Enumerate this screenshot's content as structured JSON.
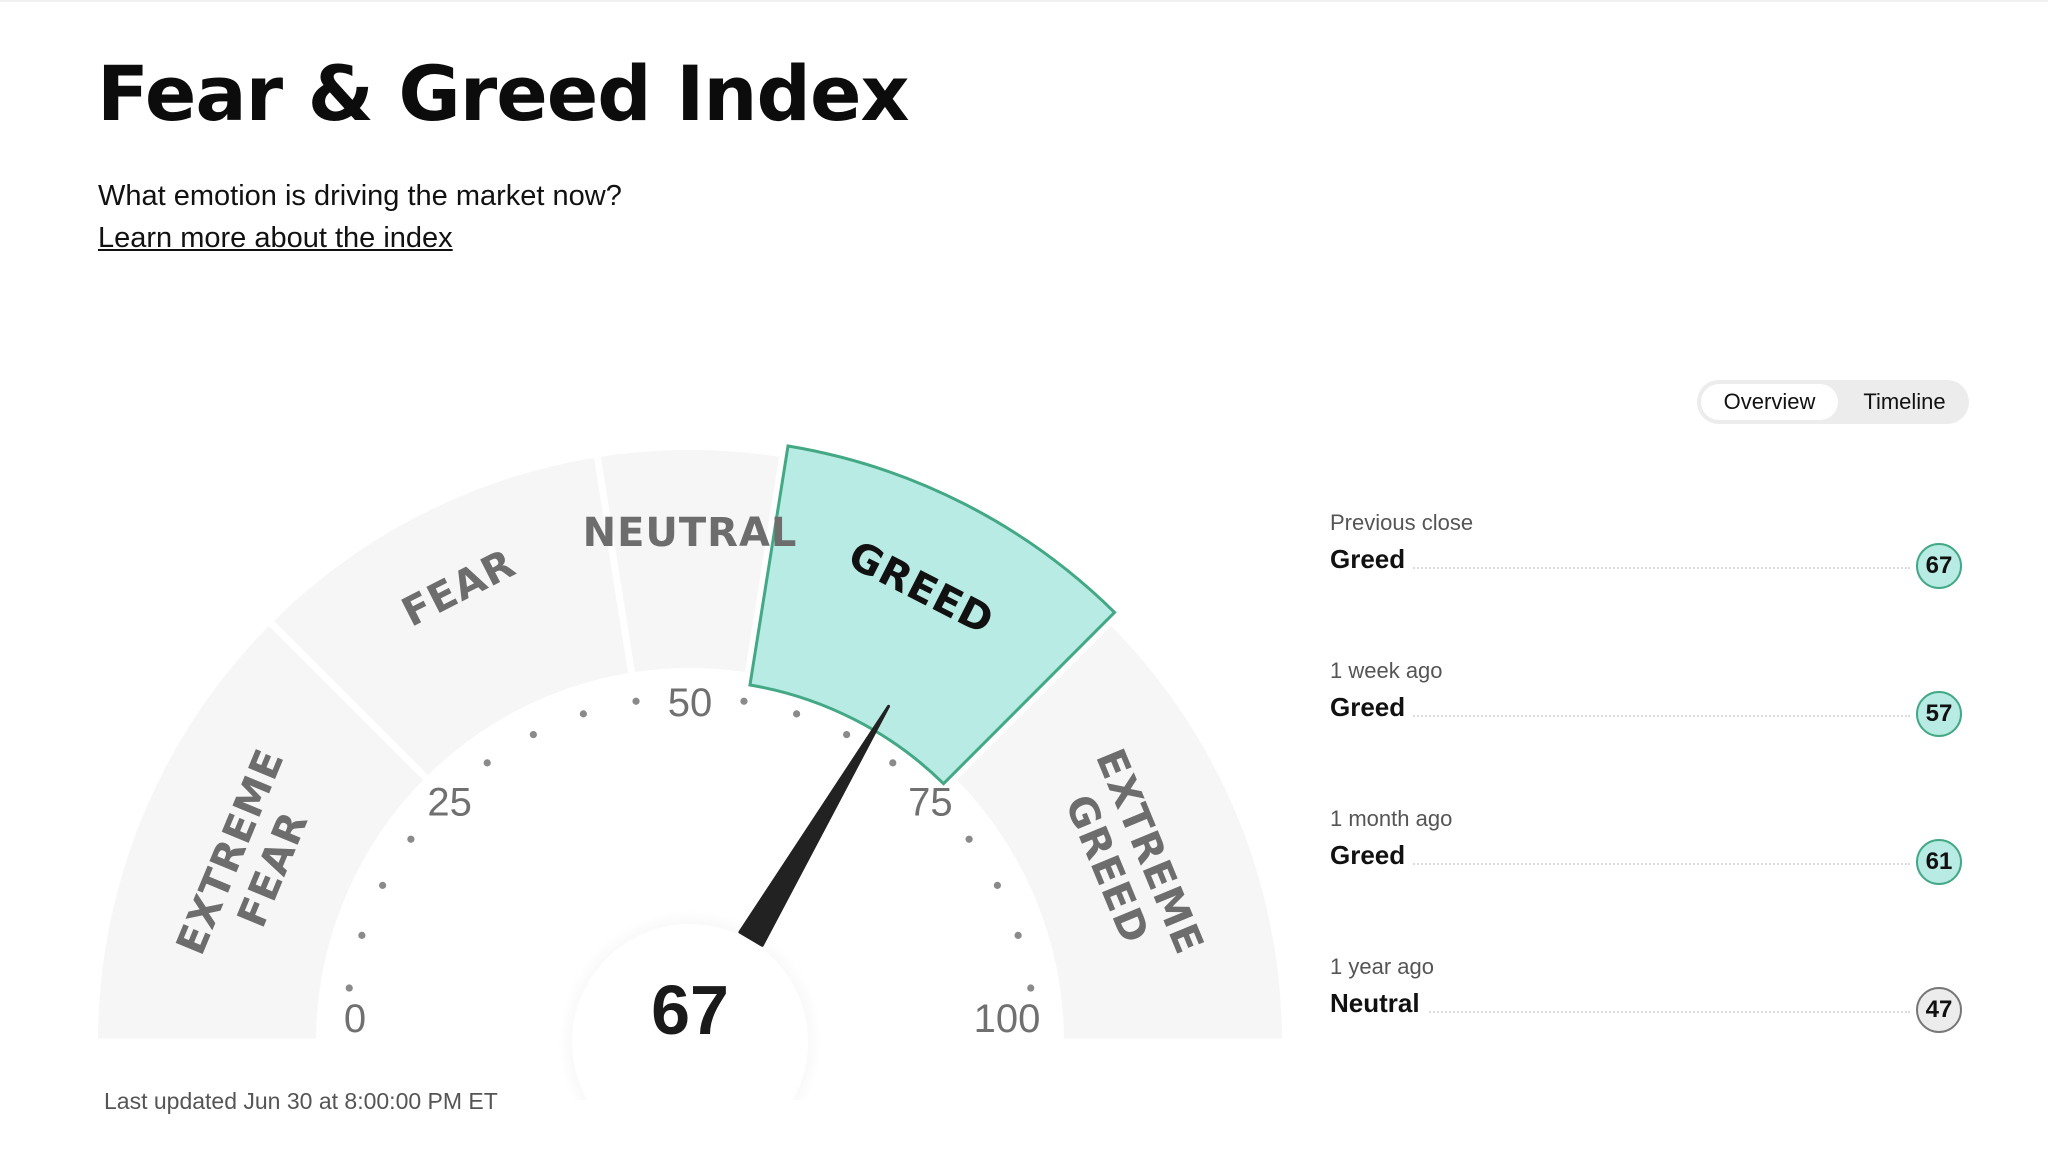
{
  "header": {
    "title": "Fear & Greed Index",
    "subtitle": "What emotion is driving the market now?",
    "learn_link": "Learn more about the index"
  },
  "gauge": {
    "value": 67,
    "value_label": "67",
    "segments": [
      {
        "label_lines": [
          "EXTREME",
          "FEAR"
        ],
        "range": [
          0,
          25
        ]
      },
      {
        "label_lines": [
          "FEAR"
        ],
        "range": [
          25,
          45
        ]
      },
      {
        "label_lines": [
          "NEUTRAL"
        ],
        "range": [
          45,
          55
        ]
      },
      {
        "label_lines": [
          "GREED"
        ],
        "range": [
          55,
          75
        ],
        "active": true
      },
      {
        "label_lines": [
          "EXTREME",
          "GREED"
        ],
        "range": [
          75,
          100
        ]
      }
    ],
    "ticks": [
      "0",
      "25",
      "50",
      "75",
      "100"
    ],
    "colors": {
      "active_fill": "#b8ebe4",
      "active_stroke": "#43a884",
      "inactive_fill": "#f6f6f6",
      "label": "#6d6d6d",
      "active_label": "#111111",
      "needle": "#222222"
    }
  },
  "last_updated": "Last updated Jun 30 at 8:00:00 PM ET",
  "toggle": {
    "overview": "Overview",
    "timeline": "Timeline"
  },
  "history": [
    {
      "period": "Previous close",
      "rating": "Greed",
      "value": "67",
      "color": "#b8ebe4",
      "border": "#43a884"
    },
    {
      "period": "1 week ago",
      "rating": "Greed",
      "value": "57",
      "color": "#b8ebe4",
      "border": "#43a884"
    },
    {
      "period": "1 month ago",
      "rating": "Greed",
      "value": "61",
      "color": "#b8ebe4",
      "border": "#43a884"
    },
    {
      "period": "1 year ago",
      "rating": "Neutral",
      "value": "47",
      "color": "#ececec",
      "border": "#777777"
    }
  ]
}
